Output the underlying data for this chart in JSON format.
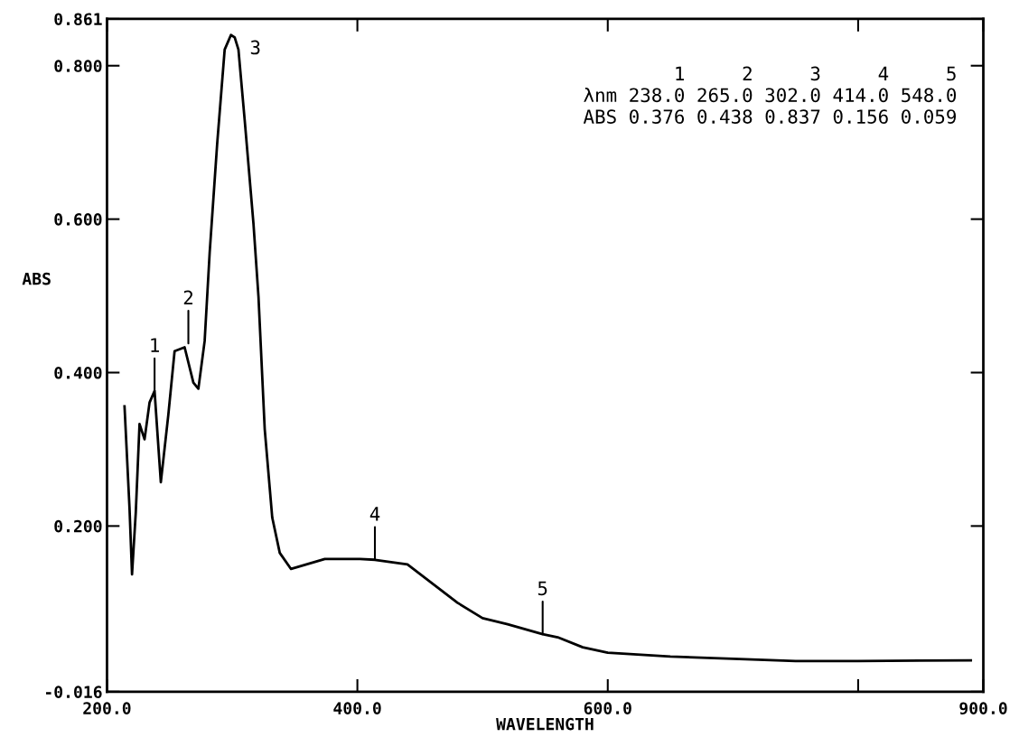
{
  "chart_data": {
    "type": "line",
    "xlabel": "WAVELENGTH",
    "ylabel": "ABS",
    "x": [
      214,
      218,
      220,
      223,
      226,
      230,
      234,
      238,
      243,
      249,
      254,
      262,
      269,
      273,
      278,
      282,
      288,
      294,
      299,
      302,
      305,
      310,
      317,
      321,
      326,
      332,
      338,
      347,
      374,
      402,
      414,
      440,
      460,
      480,
      500,
      520,
      548,
      560,
      580,
      600,
      650,
      700,
      750,
      800,
      890
    ],
    "series": [
      {
        "color": "#000000",
        "values": [
          0.356,
          0.223,
          0.137,
          0.218,
          0.333,
          0.313,
          0.361,
          0.376,
          0.257,
          0.345,
          0.428,
          0.433,
          0.387,
          0.379,
          0.441,
          0.556,
          0.698,
          0.821,
          0.84,
          0.837,
          0.821,
          0.729,
          0.594,
          0.499,
          0.326,
          0.211,
          0.165,
          0.144,
          0.157,
          0.157,
          0.156,
          0.15,
          0.125,
          0.1,
          0.08,
          0.072,
          0.059,
          0.055,
          0.042,
          0.035,
          0.03,
          0.027,
          0.024,
          0.024,
          0.025
        ]
      }
    ],
    "xlim": [
      200,
      900
    ],
    "ylim": [
      -0.016,
      0.861
    ],
    "xticks": [
      {
        "value": 200,
        "label": "200.0"
      },
      {
        "value": 400,
        "label": "400.0"
      },
      {
        "value": 600,
        "label": "600.0"
      },
      {
        "value": 800,
        "label": null
      },
      {
        "value": 900,
        "label": "900.0"
      }
    ],
    "yticks": [
      {
        "value": -0.016,
        "label": "-0.016"
      },
      {
        "value": 0.2,
        "label": "0.200"
      },
      {
        "value": 0.4,
        "label": "0.400"
      },
      {
        "value": 0.6,
        "label": "0.600"
      },
      {
        "value": 0.8,
        "label": "0.800"
      },
      {
        "value": 0.861,
        "label": "0.861"
      }
    ],
    "grid": false,
    "legend": false,
    "marker": "none",
    "line_style": "solid",
    "annotations": [
      {
        "text": "1",
        "x": 238,
        "y": 0.376
      },
      {
        "text": "2",
        "x": 265,
        "y": 0.438
      },
      {
        "text": "3",
        "x": 302,
        "y": 0.837
      },
      {
        "text": "4",
        "x": 414,
        "y": 0.156
      },
      {
        "text": "5",
        "x": 548,
        "y": 0.059
      },
      "      1     2     3     4     5",
      "λnm 238.0 265.0 302.0 414.0 548.0",
      "ABS 0.376 0.438 0.837 0.156 0.059"
    ]
  }
}
